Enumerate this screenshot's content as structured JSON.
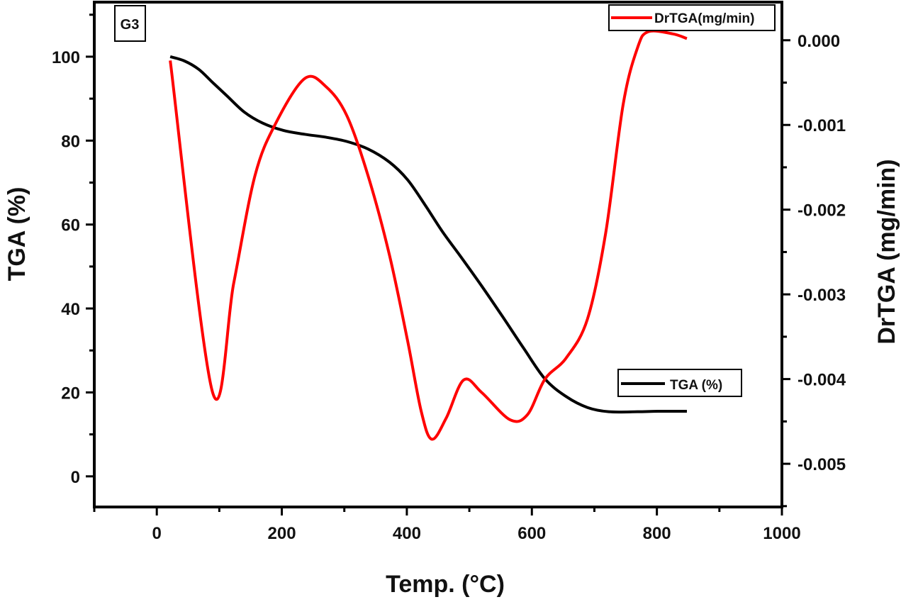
{
  "chart_data": {
    "type": "line",
    "panel_label": "G3",
    "xlabel": "Temp. (°C)",
    "ylabel_left": "TGA (%)",
    "ylabel_right": "DrTGA (mg/min)",
    "xlim": [
      -100,
      1000
    ],
    "ylim_left": [
      -7.3,
      113
    ],
    "ylim_right": [
      -0.00551,
      0.00045
    ],
    "x_ticks": [
      0,
      200,
      400,
      600,
      800,
      1000
    ],
    "y_ticks_left": [
      0,
      20,
      40,
      60,
      80,
      100
    ],
    "y_ticks_right": [
      "0.000",
      "-0.001",
      "-0.002",
      "-0.003",
      "-0.004",
      "-0.005"
    ],
    "y_ticks_right_values": [
      0,
      -0.001,
      -0.002,
      -0.003,
      -0.004,
      -0.005
    ],
    "grid": false,
    "series": [
      {
        "name": "TGA (%)",
        "axis": "left",
        "color": "#000000",
        "legend": "right-middle",
        "x": [
          21.5,
          44,
          67,
          89,
          112,
          140,
          169,
          203,
          237,
          271,
          304,
          338,
          372,
          401,
          429,
          457,
          486,
          520,
          553,
          587,
          621,
          655,
          689,
          723,
          769,
          802,
          848
        ],
        "y": [
          100,
          99,
          97,
          93.9,
          90.7,
          86.8,
          84.2,
          82.4,
          81.5,
          80.8,
          79.8,
          78,
          74.9,
          70.7,
          64.7,
          58.3,
          52.4,
          45.3,
          38.1,
          30.5,
          23.2,
          19,
          16.4,
          15.4,
          15.4,
          15.5,
          15.5
        ]
      },
      {
        "name": "DrTGA(mg/min)",
        "axis": "right",
        "color": "#ff0000",
        "legend": "top-right",
        "x": [
          21.5,
          89,
          123,
          157,
          191,
          237,
          271,
          304,
          338,
          372,
          401,
          423,
          440,
          463,
          491,
          520,
          565,
          593,
          621,
          655,
          689,
          718,
          746,
          769,
          786,
          825,
          848
        ],
        "y": [
          -0.00024,
          -0.00415,
          -0.00287,
          -0.0016,
          -0.00097,
          -0.00045,
          -0.00055,
          -0.00089,
          -0.0016,
          -0.00253,
          -0.00354,
          -0.00438,
          -0.00471,
          -0.00446,
          -0.00401,
          -0.00416,
          -0.00448,
          -0.00442,
          -0.004,
          -0.00375,
          -0.00329,
          -0.00228,
          -0.00076,
          -9e-05,
          0.0001,
          7.6e-05,
          2e-05
        ]
      }
    ]
  }
}
